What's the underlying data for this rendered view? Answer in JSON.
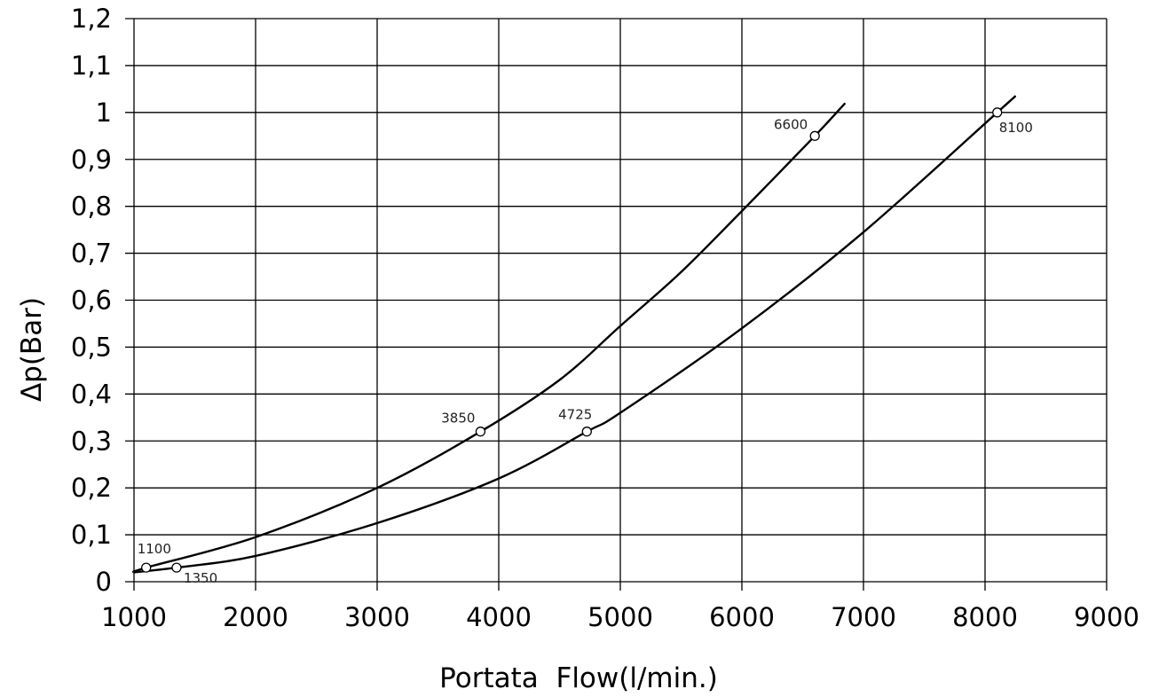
{
  "chart_data": {
    "type": "line",
    "xlabel": "Portata  Flow(l/min.)",
    "ylabel": "Δp(Bar)",
    "xlim": [
      1000,
      9000
    ],
    "ylim": [
      0,
      1.2
    ],
    "grid": true,
    "x_ticks": [
      1000,
      2000,
      3000,
      4000,
      5000,
      6000,
      7000,
      8000,
      9000
    ],
    "x_tick_labels": [
      "1000",
      "2000",
      "3000",
      "4000",
      "5000",
      "6000",
      "7000",
      "8000",
      "9000"
    ],
    "y_ticks": [
      0,
      0.1,
      0.2,
      0.3,
      0.4,
      0.5,
      0.6,
      0.7,
      0.8,
      0.9,
      1.0,
      1.1,
      1.2
    ],
    "y_tick_labels": [
      "0",
      "0,1",
      "0,2",
      "0,3",
      "0,4",
      "0,5",
      "0,6",
      "0,7",
      "0,8",
      "0,9",
      "1",
      "1,1",
      "1,2"
    ],
    "series": [
      {
        "x": [
          1000,
          1100,
          2000,
          3000,
          3850,
          4500,
          5000,
          5500,
          6000,
          6600,
          6850
        ],
        "y": [
          0.02,
          0.03,
          0.095,
          0.2,
          0.32,
          0.43,
          0.545,
          0.66,
          0.79,
          0.95,
          1.02
        ],
        "markers": [
          {
            "x": 1100,
            "y": 0.03,
            "label": "1100"
          },
          {
            "x": 3850,
            "y": 0.32,
            "label": "3850"
          },
          {
            "x": 6600,
            "y": 0.95,
            "label": "6600"
          }
        ]
      },
      {
        "x": [
          1000,
          1350,
          2000,
          3000,
          4000,
          4725,
          5000,
          6000,
          7000,
          8100,
          8250
        ],
        "y": [
          0.02,
          0.03,
          0.055,
          0.125,
          0.22,
          0.32,
          0.36,
          0.54,
          0.745,
          1.0,
          1.035
        ],
        "markers": [
          {
            "x": 1350,
            "y": 0.03,
            "label": "1350"
          },
          {
            "x": 4725,
            "y": 0.32,
            "label": "4725"
          },
          {
            "x": 8100,
            "y": 1.0,
            "label": "8100"
          }
        ]
      }
    ]
  }
}
